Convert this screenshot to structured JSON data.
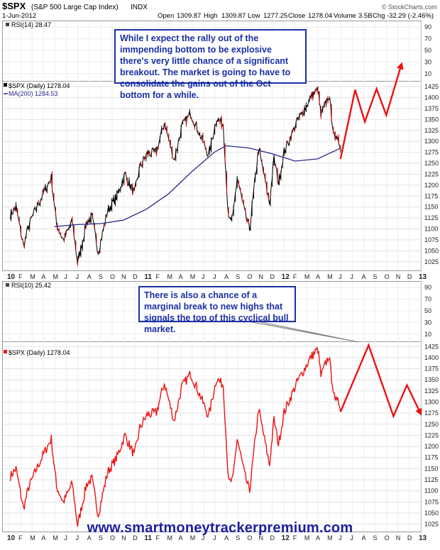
{
  "header": {
    "symbol": "$SPX",
    "name": "(S&P 500 Large Cap Index)",
    "exchange": "INDX",
    "date": "1-Jun-2012",
    "quote_open_label": "Open",
    "quote_open": "1309.87",
    "quote_high_label": "High",
    "quote_high": "1309.87",
    "quote_low_label": "Low",
    "quote_low": "1277.25",
    "quote_close_label": "Close",
    "quote_close": "1278.04",
    "quote_volume_label": "Volume",
    "quote_volume": "3.5B",
    "quote_chg_label": "Chg",
    "quote_chg": "-32.29 (-2.46%)",
    "brand": "© StockCharts.com"
  },
  "top_chart": {
    "rsi_label": "RSI(14) 28.47",
    "rsi_ticks": [
      90,
      70,
      50,
      30,
      10
    ],
    "price_label": "$SPX (Daily) 1278.04",
    "ma_label": "MA(200) 1284.53",
    "callout": "While I expect the rally out of the immpending bottom to be explosive there's very little chance of a significant breakout. The market is going to have to consolidate the gains out of the Oct bottom for a while."
  },
  "bottom_chart": {
    "rsi_label": "RSI(10) 25.42",
    "rsi_ticks": [
      90,
      70,
      50,
      30,
      10
    ],
    "price_label": "$SPX (Daily) 1278.04",
    "callout": "There is also a chance of a marginal break to new highs that signals the top of this cyclical bull market."
  },
  "x_axis_labels": [
    "10",
    "F",
    "M",
    "A",
    "M",
    "J",
    "J",
    "A",
    "S",
    "O",
    "N",
    "D",
    "11",
    "F",
    "M",
    "A",
    "M",
    "J",
    "J",
    "A",
    "S",
    "O",
    "N",
    "D",
    "12",
    "F",
    "M",
    "A",
    "M",
    "J",
    "J",
    "A",
    "S",
    "O",
    "N",
    "D",
    "13"
  ],
  "watermark": "www.smartmoneytrackerpremium.com",
  "colors": {
    "price_top": "#000000",
    "price_top_down": "#cc0000",
    "price_bottom": "#ee1111",
    "ma": "#2a2a8a",
    "projection": "#ee1111",
    "callout": "#1b2fa6"
  },
  "chart_data": {
    "type": "line",
    "x_range": [
      "2010-01",
      "2013-01"
    ],
    "y_ticks": [
      1025,
      1050,
      1075,
      1100,
      1125,
      1150,
      1175,
      1200,
      1225,
      1250,
      1275,
      1300,
      1325,
      1350,
      1375,
      1400,
      1425
    ],
    "ylim": [
      1010,
      1435
    ],
    "grid": true,
    "legend": "top-left",
    "series": [
      {
        "name": "$SPX (Daily)",
        "points": [
          [
            "2010-01-04",
            1133
          ],
          [
            "2010-01-19",
            1150
          ],
          [
            "2010-02-08",
            1060
          ],
          [
            "2010-02-22",
            1108
          ],
          [
            "2010-03-15",
            1150
          ],
          [
            "2010-04-05",
            1187
          ],
          [
            "2010-04-23",
            1217
          ],
          [
            "2010-05-07",
            1110
          ],
          [
            "2010-05-25",
            1074
          ],
          [
            "2010-06-18",
            1117
          ],
          [
            "2010-07-02",
            1022
          ],
          [
            "2010-07-26",
            1115
          ],
          [
            "2010-08-09",
            1127
          ],
          [
            "2010-08-26",
            1047
          ],
          [
            "2010-09-20",
            1142
          ],
          [
            "2010-10-15",
            1176
          ],
          [
            "2010-11-05",
            1225
          ],
          [
            "2010-11-30",
            1180
          ],
          [
            "2010-12-15",
            1242
          ],
          [
            "2011-01-03",
            1271
          ],
          [
            "2011-01-28",
            1276
          ],
          [
            "2011-02-18",
            1343
          ],
          [
            "2011-03-16",
            1257
          ],
          [
            "2011-04-06",
            1335
          ],
          [
            "2011-04-29",
            1364
          ],
          [
            "2011-05-23",
            1317
          ],
          [
            "2011-06-16",
            1268
          ],
          [
            "2011-07-07",
            1353
          ],
          [
            "2011-07-25",
            1338
          ],
          [
            "2011-08-08",
            1119
          ],
          [
            "2011-08-19",
            1123
          ],
          [
            "2011-08-31",
            1218
          ],
          [
            "2011-09-22",
            1129
          ],
          [
            "2011-10-03",
            1099
          ],
          [
            "2011-10-27",
            1285
          ],
          [
            "2011-11-25",
            1158
          ],
          [
            "2011-12-07",
            1261
          ],
          [
            "2011-12-19",
            1205
          ],
          [
            "2012-01-03",
            1277
          ],
          [
            "2012-02-06",
            1344
          ],
          [
            "2012-03-15",
            1402
          ],
          [
            "2012-04-02",
            1419
          ],
          [
            "2012-04-10",
            1358
          ],
          [
            "2012-05-01",
            1405
          ],
          [
            "2012-05-18",
            1295
          ],
          [
            "2012-05-25",
            1317
          ],
          [
            "2012-06-01",
            1278
          ]
        ]
      },
      {
        "name": "MA(200)",
        "points": [
          [
            "2010-05-01",
            1105
          ],
          [
            "2010-07-01",
            1110
          ],
          [
            "2010-09-01",
            1112
          ],
          [
            "2010-11-01",
            1120
          ],
          [
            "2011-01-01",
            1145
          ],
          [
            "2011-03-01",
            1180
          ],
          [
            "2011-05-01",
            1230
          ],
          [
            "2011-07-01",
            1275
          ],
          [
            "2011-08-01",
            1290
          ],
          [
            "2011-10-01",
            1285
          ],
          [
            "2011-12-01",
            1272
          ],
          [
            "2012-02-01",
            1255
          ],
          [
            "2012-04-01",
            1260
          ],
          [
            "2012-06-01",
            1284.53
          ]
        ]
      }
    ],
    "projections": {
      "top": [
        [
          "2012-06-01",
          1260
        ],
        [
          "2012-07-10",
          1418
        ],
        [
          "2012-08-05",
          1345
        ],
        [
          "2012-09-05",
          1420
        ],
        [
          "2012-10-01",
          1360
        ],
        [
          "2012-11-10",
          1475
        ]
      ],
      "bottom": [
        [
          "2012-06-01",
          1278
        ],
        [
          "2012-08-15",
          1428
        ],
        [
          "2012-10-20",
          1268
        ],
        [
          "2012-11-25",
          1338
        ],
        [
          "2012-12-31",
          1275
        ]
      ]
    }
  }
}
